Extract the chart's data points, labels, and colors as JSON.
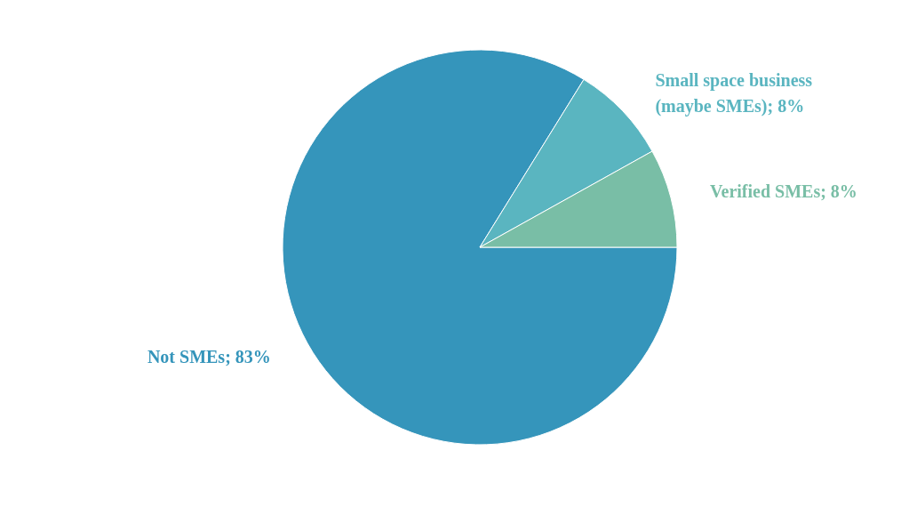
{
  "chart_data": {
    "type": "pie",
    "categories": [
      "Not SMEs",
      "Small space business (maybe SMEs)",
      "Verified SMEs"
    ],
    "values": [
      83,
      8,
      8
    ],
    "value_labels": [
      "83%",
      "8%",
      "8%"
    ],
    "colors": [
      "#3595bb",
      "#5ab5c0",
      "#79bea6"
    ],
    "legend": false
  }
}
